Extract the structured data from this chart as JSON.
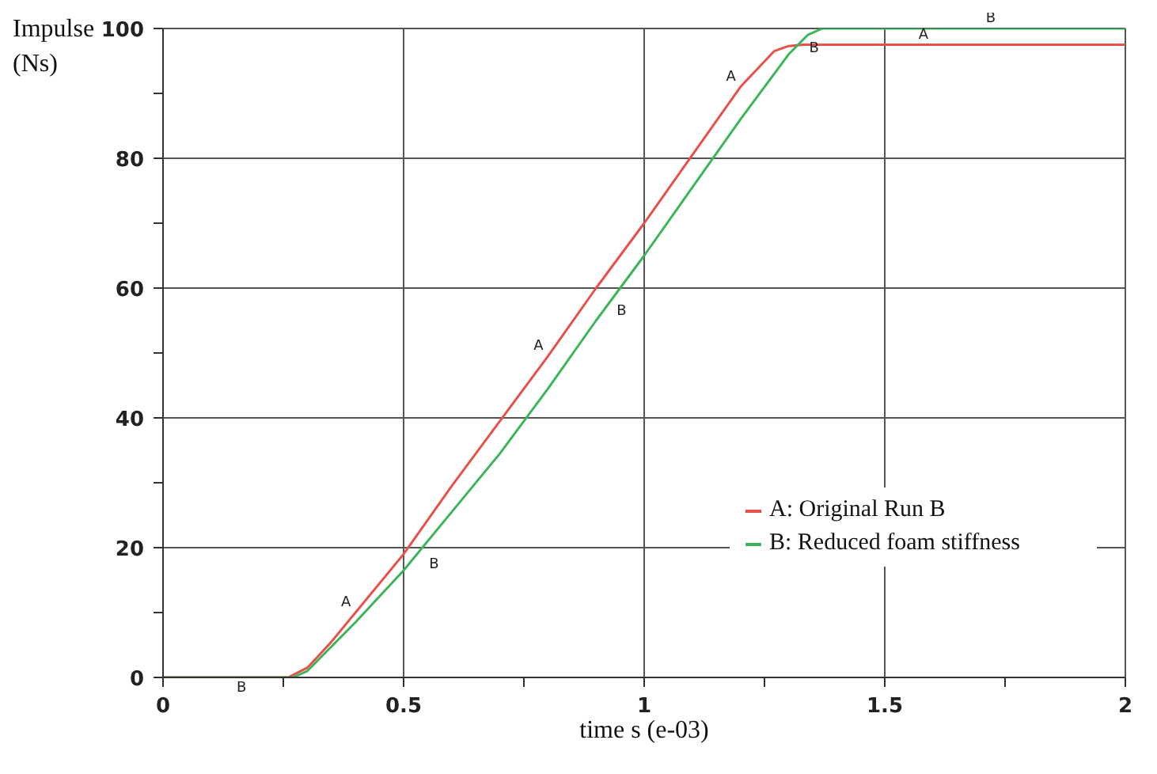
{
  "chart_data": {
    "type": "line",
    "xlabel": "time s (e-03)",
    "ylabel": "Impulse (Ns)",
    "xlim": [
      0,
      2
    ],
    "ylim": [
      0,
      100
    ],
    "xticks": [
      0,
      {
        "value": 0.25,
        "label": null
      },
      0.5,
      {
        "value": 0.75,
        "label": null
      },
      1,
      {
        "value": 1.25,
        "label": null
      },
      1.5,
      {
        "value": 1.75,
        "label": null
      },
      2
    ],
    "yticks": [
      0,
      {
        "value": 10,
        "label": null
      },
      20,
      {
        "value": 30,
        "label": null
      },
      40,
      {
        "value": 50,
        "label": null
      },
      60,
      {
        "value": 70,
        "label": null
      },
      80,
      {
        "value": 90,
        "label": null
      },
      100
    ],
    "grid": true,
    "legend": "bottom right",
    "marker": "none",
    "line_style": "solid",
    "series": [
      {
        "name": "A: Original Run B",
        "color": "#e8504a",
        "x": [
          0,
          0.26,
          0.3,
          0.35,
          0.4,
          0.5,
          0.6,
          0.7,
          0.8,
          0.9,
          1.0,
          1.1,
          1.2,
          1.27,
          1.3,
          1.33,
          1.4,
          1.6,
          2.0
        ],
        "values": [
          0,
          0,
          1.5,
          5.5,
          10,
          19,
          29.5,
          39.5,
          49.5,
          60,
          70,
          80.5,
          91,
          96.5,
          97.3,
          97.5,
          97.5,
          97.5,
          97.5
        ]
      },
      {
        "name": "B: Reduced foam stiffness",
        "color": "#3cb55a",
        "x": [
          0,
          0.27,
          0.3,
          0.4,
          0.5,
          0.6,
          0.7,
          0.8,
          0.9,
          1.0,
          1.1,
          1.2,
          1.3,
          1.34,
          1.37,
          1.4,
          2.0
        ],
        "values": [
          0,
          0,
          1,
          8.5,
          16.5,
          25.5,
          34.5,
          44.5,
          55,
          65,
          75.5,
          86,
          96,
          99,
          100,
          100,
          100
        ]
      }
    ],
    "annotations": [
      {
        "text": "A",
        "x": 0.4,
        "y": 10
      },
      {
        "text": "A",
        "x": 0.8,
        "y": 49.5
      },
      {
        "text": "A",
        "x": 1.2,
        "y": 91
      },
      {
        "text": "A",
        "x": 1.6,
        "y": 97.5
      },
      {
        "text": "B",
        "x": 0.14,
        "y": 0
      },
      {
        "text": "B",
        "x": 0.54,
        "y": 19
      },
      {
        "text": "B",
        "x": 0.93,
        "y": 58
      },
      {
        "text": "B",
        "x": 1.33,
        "y": 98.5
      },
      {
        "text": "B",
        "x": 1.74,
        "y": 100
      }
    ]
  }
}
